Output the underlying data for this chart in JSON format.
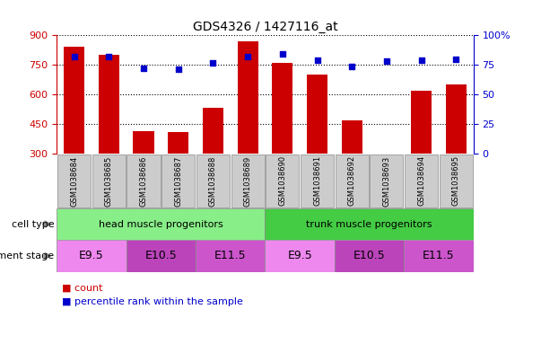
{
  "title": "GDS4326 / 1427116_at",
  "samples": [
    "GSM1038684",
    "GSM1038685",
    "GSM1038686",
    "GSM1038687",
    "GSM1038688",
    "GSM1038689",
    "GSM1038690",
    "GSM1038691",
    "GSM1038692",
    "GSM1038693",
    "GSM1038694",
    "GSM1038695"
  ],
  "counts": [
    840,
    800,
    415,
    410,
    530,
    870,
    760,
    700,
    470,
    295,
    620,
    650
  ],
  "percentiles": [
    82,
    82,
    72,
    71,
    77,
    82,
    84,
    79,
    74,
    78,
    79,
    80
  ],
  "y_min": 300,
  "y_max": 900,
  "y_ticks": [
    300,
    450,
    600,
    750,
    900
  ],
  "y2_ticks": [
    0,
    25,
    50,
    75,
    100
  ],
  "bar_color": "#cc0000",
  "dot_color": "#0000cc",
  "cell_type_groups": [
    {
      "label": "head muscle progenitors",
      "start": 0,
      "end": 5,
      "color": "#88ee88"
    },
    {
      "label": "trunk muscle progenitors",
      "start": 6,
      "end": 11,
      "color": "#44cc44"
    }
  ],
  "dev_stage_groups": [
    {
      "label": "E9.5",
      "start": 0,
      "end": 1,
      "color": "#ee88ee"
    },
    {
      "label": "E10.5",
      "start": 2,
      "end": 3,
      "color": "#cc44cc"
    },
    {
      "label": "E11.5",
      "start": 4,
      "end": 5,
      "color": "#ee88ee"
    },
    {
      "label": "E9.5",
      "start": 6,
      "end": 7,
      "color": "#ee88ee"
    },
    {
      "label": "E10.5",
      "start": 8,
      "end": 9,
      "color": "#cc44cc"
    },
    {
      "label": "E11.5",
      "start": 10,
      "end": 11,
      "color": "#ee88ee"
    }
  ],
  "background_color": "#ffffff",
  "sample_box_color": "#cccccc"
}
